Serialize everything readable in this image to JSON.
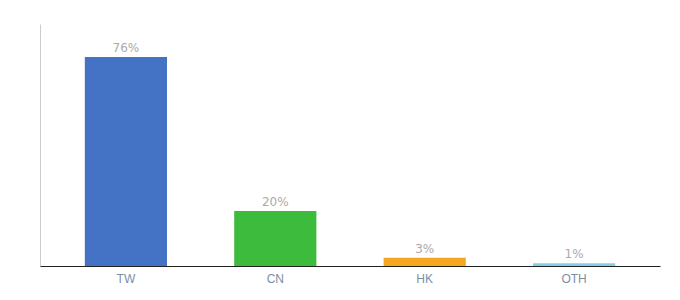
{
  "chart_data": {
    "type": "bar",
    "categories": [
      "TW",
      "CN",
      "HK",
      "OTH"
    ],
    "values": [
      76,
      20,
      3,
      1
    ],
    "value_labels": [
      "76%",
      "20%",
      "3%",
      "1%"
    ],
    "colors": [
      "#4472c4",
      "#3dbb3d",
      "#f5a623",
      "#87ceeb"
    ],
    "ylim": [
      0,
      88
    ],
    "data_labels": true,
    "tick_labels": "x"
  }
}
